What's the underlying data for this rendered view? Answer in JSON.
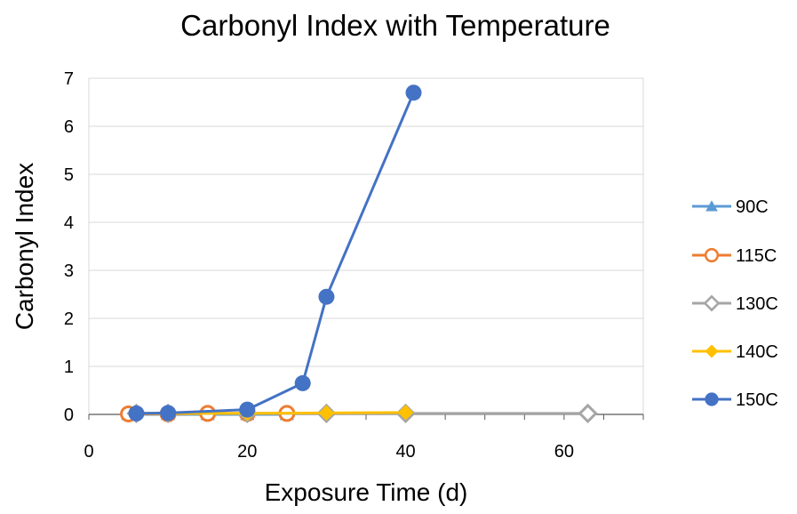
{
  "chart_data": {
    "type": "scatter",
    "title": "Carbonyl Index with Temperature",
    "xlabel": "Exposure Time (d)",
    "ylabel": "Carbonyl Index",
    "xlim": [
      0,
      70
    ],
    "ylim": [
      0,
      7
    ],
    "x_ticks": [
      0,
      20,
      40,
      60
    ],
    "y_ticks": [
      0,
      1,
      2,
      3,
      4,
      5,
      6,
      7
    ],
    "grid": "horizontal",
    "legend": "right",
    "series": [
      {
        "name": "90C",
        "color": "#5B9BD5",
        "marker": "triangle",
        "x": [
          5,
          10,
          15,
          20,
          25
        ],
        "y": [
          0,
          0,
          0,
          0,
          0
        ]
      },
      {
        "name": "115C",
        "color": "#ED7D31",
        "marker": "circle-open",
        "x": [
          5,
          10,
          15,
          20,
          25
        ],
        "y": [
          0.01,
          0.01,
          0.02,
          0.02,
          0.02
        ]
      },
      {
        "name": "130C",
        "color": "#A5A5A5",
        "marker": "diamond-open",
        "x": [
          6,
          10,
          20,
          30,
          40,
          63
        ],
        "y": [
          0.02,
          0.02,
          0.02,
          0.02,
          0.02,
          0.02
        ]
      },
      {
        "name": "140C",
        "color": "#FFC000",
        "marker": "diamond",
        "x": [
          6,
          10,
          20,
          30,
          40
        ],
        "y": [
          0.02,
          0.02,
          0.02,
          0.03,
          0.04
        ]
      },
      {
        "name": "150C",
        "color": "#4472C4",
        "marker": "circle",
        "x": [
          6,
          10,
          20,
          27,
          30,
          41
        ],
        "y": [
          0.02,
          0.03,
          0.1,
          0.65,
          2.45,
          6.7
        ]
      }
    ]
  }
}
